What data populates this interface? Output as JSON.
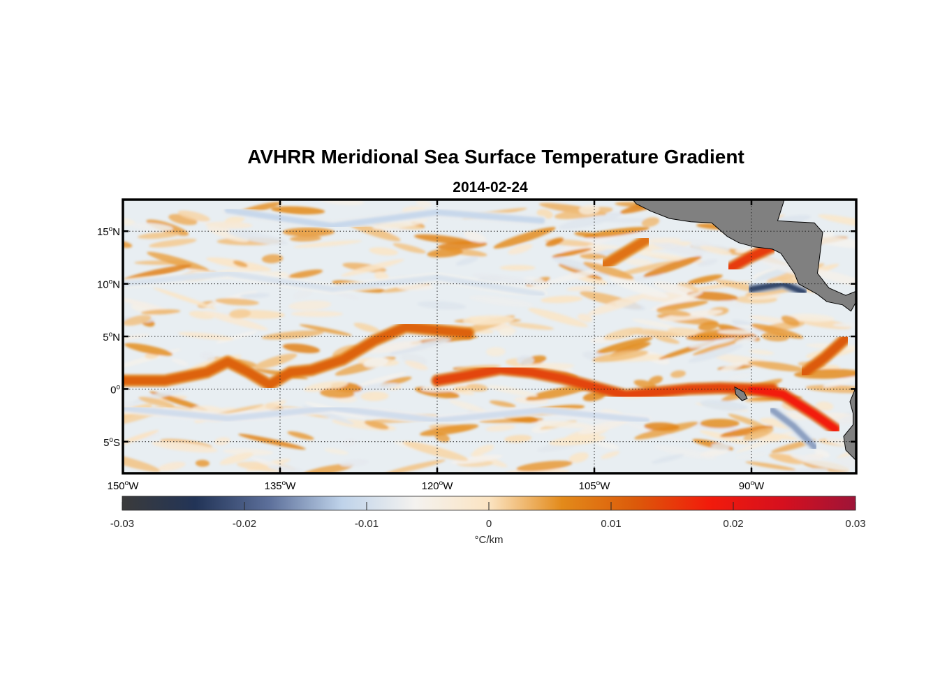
{
  "title": "AVHRR Meridional Sea Surface Temperature Gradient",
  "subtitle": "2014-02-24",
  "map": {
    "extent": {
      "lon": [
        -150,
        -80
      ],
      "lat": [
        -8,
        18
      ]
    },
    "lat_ticks": [
      {
        "value": 15,
        "deg": "15",
        "hemi": "N"
      },
      {
        "value": 10,
        "deg": "10",
        "hemi": "N"
      },
      {
        "value": 5,
        "deg": "5",
        "hemi": "N"
      },
      {
        "value": 0,
        "deg": "0",
        "hemi": ""
      },
      {
        "value": -5,
        "deg": "5",
        "hemi": "S"
      }
    ],
    "lon_ticks": [
      {
        "value": -150,
        "deg": "150",
        "hemi": "W"
      },
      {
        "value": -135,
        "deg": "135",
        "hemi": "W"
      },
      {
        "value": -120,
        "deg": "120",
        "hemi": "W"
      },
      {
        "value": -105,
        "deg": "105",
        "hemi": "W"
      },
      {
        "value": -90,
        "deg": "90",
        "hemi": "W"
      }
    ],
    "grid": "dotted",
    "land_color": "#808080",
    "ocean_background": "#e8eef2"
  },
  "colorbar": {
    "range": [
      -0.03,
      0.03
    ],
    "tick_labels": [
      "-0.03",
      "-0.02",
      "-0.01",
      "0",
      "0.01",
      "0.02",
      "0.03"
    ],
    "tick_values": [
      -0.03,
      -0.02,
      -0.01,
      0,
      0.01,
      0.02,
      0.03
    ],
    "unit_label": "°C/km",
    "colors": [
      "#3b3b3b",
      "#223457",
      "#5c6f9a",
      "#bfd3ea",
      "#f4f2ef",
      "#fbe4c2",
      "#e38a1a",
      "#dc5a0a",
      "#f21b0b",
      "#d6101e",
      "#9e1438"
    ]
  },
  "features": {
    "warm_fronts": [
      {
        "name": "equatorial-front",
        "path": [
          [
            -150,
            0.8
          ],
          [
            -146,
            0.8
          ],
          [
            -142,
            1.6
          ],
          [
            -140,
            2.6
          ],
          [
            -138,
            1.6
          ],
          [
            -136,
            0.4
          ],
          [
            -134,
            1.6
          ],
          [
            -132,
            1.8
          ],
          [
            -129,
            2.8
          ],
          [
            -126,
            4.6
          ],
          [
            -123,
            5.9
          ],
          [
            -120,
            5.6
          ],
          [
            -117,
            5.3
          ]
        ],
        "strength": 0.011
      },
      {
        "name": "central-front",
        "path": [
          [
            -120,
            0.8
          ],
          [
            -117,
            1.3
          ],
          [
            -114,
            1.9
          ],
          [
            -111,
            1.6
          ],
          [
            -108,
            1.0
          ],
          [
            -105,
            0.2
          ],
          [
            -102,
            -0.6
          ],
          [
            -99,
            -0.3
          ],
          [
            -96,
            0.0
          ],
          [
            -93,
            0.1
          ],
          [
            -90,
            0.0
          ],
          [
            -88,
            0.0
          ]
        ],
        "strength": 0.014
      },
      {
        "name": "peru-front",
        "path": [
          [
            -90,
            0.0
          ],
          [
            -87,
            -0.5
          ],
          [
            -84,
            -2.4
          ],
          [
            -82,
            -3.8
          ]
        ],
        "strength": 0.018
      },
      {
        "name": "north-front",
        "path": [
          [
            -85,
            1.5
          ],
          [
            -83,
            3.0
          ],
          [
            -81,
            4.8
          ]
        ],
        "strength": 0.012
      },
      {
        "name": "pacific-front",
        "path": [
          [
            -104,
            11.8
          ],
          [
            -102,
            13.0
          ],
          [
            -100,
            14.2
          ]
        ],
        "strength": 0.009
      },
      {
        "name": "papagayo-front",
        "path": [
          [
            -92,
            11.5
          ],
          [
            -90,
            12.6
          ],
          [
            -88,
            13.5
          ]
        ],
        "strength": 0.015
      }
    ],
    "cold_bands": [
      {
        "name": "south-band",
        "path": [
          [
            -150,
            -1.8
          ],
          [
            -140,
            -2.8
          ],
          [
            -130,
            -1.8
          ],
          [
            -120,
            -3.0
          ],
          [
            -110,
            -2.0
          ],
          [
            -100,
            -3.0
          ]
        ],
        "strength": -0.01
      },
      {
        "name": "north-band",
        "path": [
          [
            -150,
            10.0
          ],
          [
            -140,
            11.0
          ],
          [
            -130,
            9.5
          ],
          [
            -120,
            10.6
          ],
          [
            -110,
            9.0
          ]
        ],
        "strength": -0.009
      },
      {
        "name": "top-band",
        "path": [
          [
            -140,
            17.0
          ],
          [
            -130,
            15.5
          ],
          [
            -120,
            16.8
          ],
          [
            -110,
            16.0
          ]
        ],
        "strength": -0.011
      },
      {
        "name": "papagayo-cold",
        "path": [
          [
            -90,
            9.5
          ],
          [
            -87,
            10.0
          ],
          [
            -85,
            9.2
          ]
        ],
        "strength": -0.022
      },
      {
        "name": "peru-cold",
        "path": [
          [
            -88,
            -2.0
          ],
          [
            -86,
            -3.5
          ],
          [
            -84,
            -5.5
          ]
        ],
        "strength": -0.015
      }
    ]
  }
}
